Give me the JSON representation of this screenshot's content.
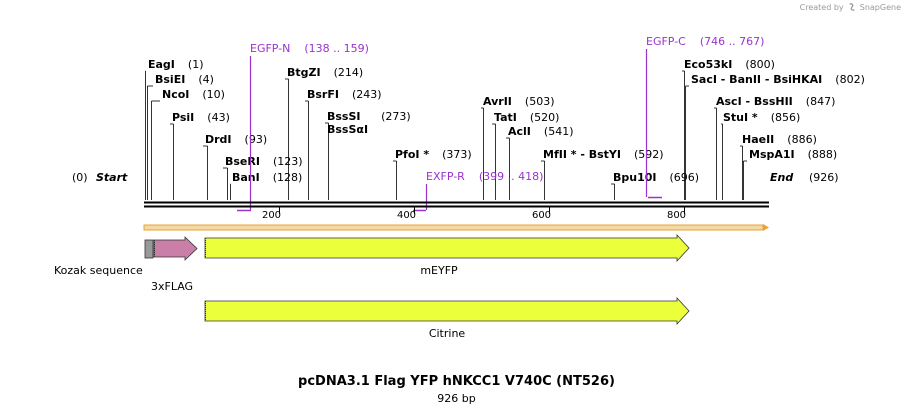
{
  "credit": {
    "text": "Created by",
    "brand": "SnapGene"
  },
  "title": "pcDNA3.1 Flag YFP hNKCC1 V740C (NT526)",
  "subtitle": "926 bp",
  "colors": {
    "primer": "#9933cc",
    "feature_fill": "#ebff3b",
    "tag_fill": "#c97fa8",
    "kozak_fill": "#999999",
    "orf": "#e8a33a"
  },
  "sequence": {
    "length": 926,
    "start_label": "Start",
    "end_label": "End",
    "start_pos": "(0)",
    "end_pos": "(926)",
    "ticks": [
      200,
      400,
      600,
      800
    ]
  },
  "sites": [
    {
      "name": "EagI",
      "pos": 1,
      "pos_label": "(1)"
    },
    {
      "name": "BsiEI",
      "pos": 4,
      "pos_label": "(4)"
    },
    {
      "name": "NcoI",
      "pos": 10,
      "pos_label": "(10)"
    },
    {
      "name": "PsiI",
      "pos": 43,
      "pos_label": "(43)"
    },
    {
      "name": "DrdI",
      "pos": 93,
      "pos_label": "(93)"
    },
    {
      "name": "BseRI",
      "pos": 123,
      "pos_label": "(123)"
    },
    {
      "name": "BanI",
      "pos": 128,
      "pos_label": "(128)"
    },
    {
      "name": "BtgZI",
      "pos": 214,
      "pos_label": "(214)"
    },
    {
      "name": "BsrFI",
      "pos": 243,
      "pos_label": "(243)"
    },
    {
      "name": "BssSI\nBssSαI",
      "pos": 273,
      "pos_label": "(273)"
    },
    {
      "name": "PfoI *",
      "pos": 373,
      "pos_label": "(373)"
    },
    {
      "name": "AvrII",
      "pos": 503,
      "pos_label": "(503)"
    },
    {
      "name": "TatI",
      "pos": 520,
      "pos_label": "(520)"
    },
    {
      "name": "AclI",
      "pos": 541,
      "pos_label": "(541)"
    },
    {
      "name": "MfII * - BstYI",
      "pos": 592,
      "pos_label": "(592)"
    },
    {
      "name": "Bpu10I",
      "pos": 696,
      "pos_label": "(696)"
    },
    {
      "name": "Eco53kI",
      "pos": 800,
      "pos_label": "(800)"
    },
    {
      "name": "SacI - BanII - BsiHKAI",
      "pos": 802,
      "pos_label": "(802)"
    },
    {
      "name": "AscI - BssHII",
      "pos": 847,
      "pos_label": "(847)"
    },
    {
      "name": "StuI *",
      "pos": 856,
      "pos_label": "(856)"
    },
    {
      "name": "HaeII",
      "pos": 886,
      "pos_label": "(886)"
    },
    {
      "name": "MspA1I",
      "pos": 888,
      "pos_label": "(888)"
    }
  ],
  "primers": [
    {
      "name": "EGFP-N",
      "range": "(138 .. 159)",
      "start": 138,
      "end": 159,
      "side": "top"
    },
    {
      "name": "EXFP-R",
      "range": "(399 .. 418)",
      "start": 399,
      "end": 418,
      "side": "low"
    },
    {
      "name": "EGFP-C",
      "range": "(746 .. 767)",
      "start": 746,
      "end": 767,
      "side": "top"
    }
  ],
  "features": [
    {
      "name": "Kozak sequence",
      "start": 1,
      "end": 10,
      "type": "box"
    },
    {
      "name": "3xFLAG",
      "start": 13,
      "end": 78,
      "type": "arrow"
    },
    {
      "name": "mEYFP",
      "start": 91,
      "end": 807,
      "type": "arrow"
    },
    {
      "name": "Citrine",
      "start": 91,
      "end": 807,
      "type": "arrow"
    }
  ]
}
